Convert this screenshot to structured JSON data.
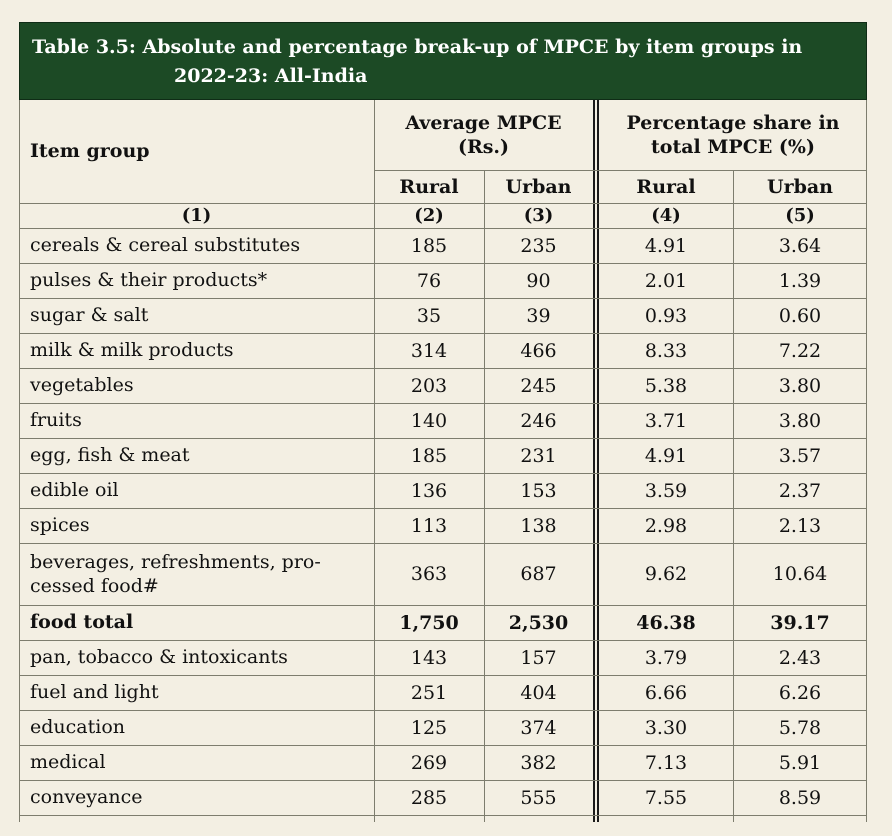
{
  "table": {
    "title_line1": "Table 3.5: Absolute and percentage break-up of MPCE by item groups in",
    "title_line2": "2022-23: All-India",
    "header": {
      "item_group": "Item group",
      "avg_mpce_line1": "Average MPCE",
      "avg_mpce_line2": "(Rs.)",
      "pct_share_line1": "Percentage share in",
      "pct_share_line2": "total MPCE (%)",
      "rural": "Rural",
      "urban": "Urban",
      "col_numbers": [
        "(1)",
        "(2)",
        "(3)",
        "(4)",
        "(5)"
      ]
    },
    "rows": [
      {
        "label": "cereals & cereal substitutes",
        "rural_mpce": "185",
        "urban_mpce": "235",
        "rural_pct": "4.91",
        "urban_pct": "3.64"
      },
      {
        "label": "pulses & their products*",
        "rural_mpce": "76",
        "urban_mpce": "90",
        "rural_pct": "2.01",
        "urban_pct": "1.39"
      },
      {
        "label": "sugar & salt",
        "rural_mpce": "35",
        "urban_mpce": "39",
        "rural_pct": "0.93",
        "urban_pct": "0.60"
      },
      {
        "label": "milk & milk products",
        "rural_mpce": "314",
        "urban_mpce": "466",
        "rural_pct": "8.33",
        "urban_pct": "7.22"
      },
      {
        "label": "vegetables",
        "rural_mpce": "203",
        "urban_mpce": "245",
        "rural_pct": "5.38",
        "urban_pct": "3.80"
      },
      {
        "label": "fruits",
        "rural_mpce": "140",
        "urban_mpce": "246",
        "rural_pct": "3.71",
        "urban_pct": "3.80"
      },
      {
        "label": "egg, fish & meat",
        "rural_mpce": "185",
        "urban_mpce": "231",
        "rural_pct": "4.91",
        "urban_pct": "3.57"
      },
      {
        "label": "edible oil",
        "rural_mpce": "136",
        "urban_mpce": "153",
        "rural_pct": "3.59",
        "urban_pct": "2.37"
      },
      {
        "label": "spices",
        "rural_mpce": "113",
        "urban_mpce": "138",
        "rural_pct": "2.98",
        "urban_pct": "2.13"
      },
      {
        "label_line1": "beverages, refreshments, pro-",
        "label_line2": "cessed food#",
        "rural_mpce": "363",
        "urban_mpce": "687",
        "rural_pct": "9.62",
        "urban_pct": "10.64"
      },
      {
        "label": "food total",
        "rural_mpce": "1,750",
        "urban_mpce": "2,530",
        "rural_pct": "46.38",
        "urban_pct": "39.17",
        "bold": true
      },
      {
        "label": "pan, tobacco & intoxicants",
        "rural_mpce": "143",
        "urban_mpce": "157",
        "rural_pct": "3.79",
        "urban_pct": "2.43"
      },
      {
        "label": "fuel and light",
        "rural_mpce": "251",
        "urban_mpce": "404",
        "rural_pct": "6.66",
        "urban_pct": "6.26"
      },
      {
        "label": "education",
        "rural_mpce": "125",
        "urban_mpce": "374",
        "rural_pct": "3.30",
        "urban_pct": "5.78"
      },
      {
        "label": "medical",
        "rural_mpce": "269",
        "urban_mpce": "382",
        "rural_pct": "7.13",
        "urban_pct": "5.91"
      },
      {
        "label": "conveyance",
        "rural_mpce": "285",
        "urban_mpce": "555",
        "rural_pct": "7.55",
        "urban_pct": "8.59"
      }
    ]
  },
  "colors": {
    "title_bg": "#1c4a25",
    "page_bg": "#f3efe3",
    "rule": "#7d7d6e"
  }
}
